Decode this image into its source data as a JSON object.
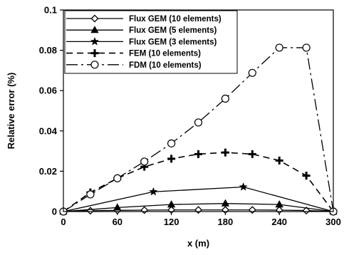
{
  "chart_data": {
    "type": "line",
    "xlabel": "x (m)",
    "ylabel": "Relative error (%)",
    "xlim": [
      0,
      300
    ],
    "ylim": [
      0,
      0.1
    ],
    "xticks": [
      0,
      60,
      120,
      180,
      240,
      300
    ],
    "yticks": [
      0,
      0.02,
      0.04,
      0.06,
      0.08,
      0.1
    ],
    "ytick_labels": [
      "0",
      "0.02",
      "0.04",
      "0.06",
      "0.08",
      "0.1"
    ],
    "grid": false,
    "legend_position": "top-left",
    "series": [
      {
        "name": "Flux GEM (10 elements)",
        "marker": "diamond",
        "line_style": "solid",
        "color": "#000000",
        "x": [
          0,
          30,
          60,
          90,
          120,
          150,
          180,
          210,
          240,
          270,
          300
        ],
        "y": [
          0,
          0.0004,
          0.0006,
          0.0007,
          0.0008,
          0.0008,
          0.0008,
          0.0008,
          0.0007,
          0.0005,
          0
        ]
      },
      {
        "name": "Flux GEM (5 elements)",
        "marker": "triangle",
        "line_style": "solid",
        "color": "#000000",
        "x": [
          0,
          60,
          120,
          180,
          240,
          300
        ],
        "y": [
          0,
          0.002,
          0.0035,
          0.004,
          0.0035,
          0
        ]
      },
      {
        "name": "Flux GEM (3 elements)",
        "marker": "star",
        "line_style": "solid",
        "color": "#000000",
        "x": [
          0,
          100,
          200,
          300
        ],
        "y": [
          0,
          0.0098,
          0.0122,
          0
        ]
      },
      {
        "name": "FEM (10 elements)",
        "marker": "plus",
        "line_style": "dashed",
        "color": "#000000",
        "x": [
          0,
          30,
          60,
          90,
          120,
          150,
          180,
          210,
          240,
          270,
          300
        ],
        "y": [
          0,
          0.0095,
          0.0165,
          0.0222,
          0.0262,
          0.0285,
          0.0293,
          0.0285,
          0.0253,
          0.0178,
          0
        ]
      },
      {
        "name": "FDM (10 elements)",
        "marker": "open-circle",
        "line_style": "dash-dot",
        "color": "#000000",
        "x": [
          0,
          30,
          60,
          90,
          120,
          150,
          180,
          210,
          240,
          270,
          300
        ],
        "y": [
          0,
          0.0085,
          0.0165,
          0.0248,
          0.0338,
          0.0442,
          0.056,
          0.0688,
          0.0813,
          0.0813,
          0
        ]
      }
    ]
  }
}
